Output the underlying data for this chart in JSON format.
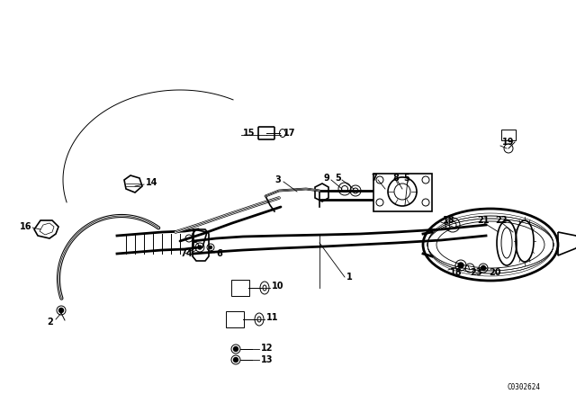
{
  "bg_color": "#ffffff",
  "line_color": "#000000",
  "fig_width": 6.4,
  "fig_height": 4.48,
  "dpi": 100,
  "watermark": "C0302624",
  "title_fontsize": 7,
  "lw_pipe": 2.0,
  "lw_part": 1.2,
  "lw_thin": 0.7,
  "lw_leader": 0.6
}
